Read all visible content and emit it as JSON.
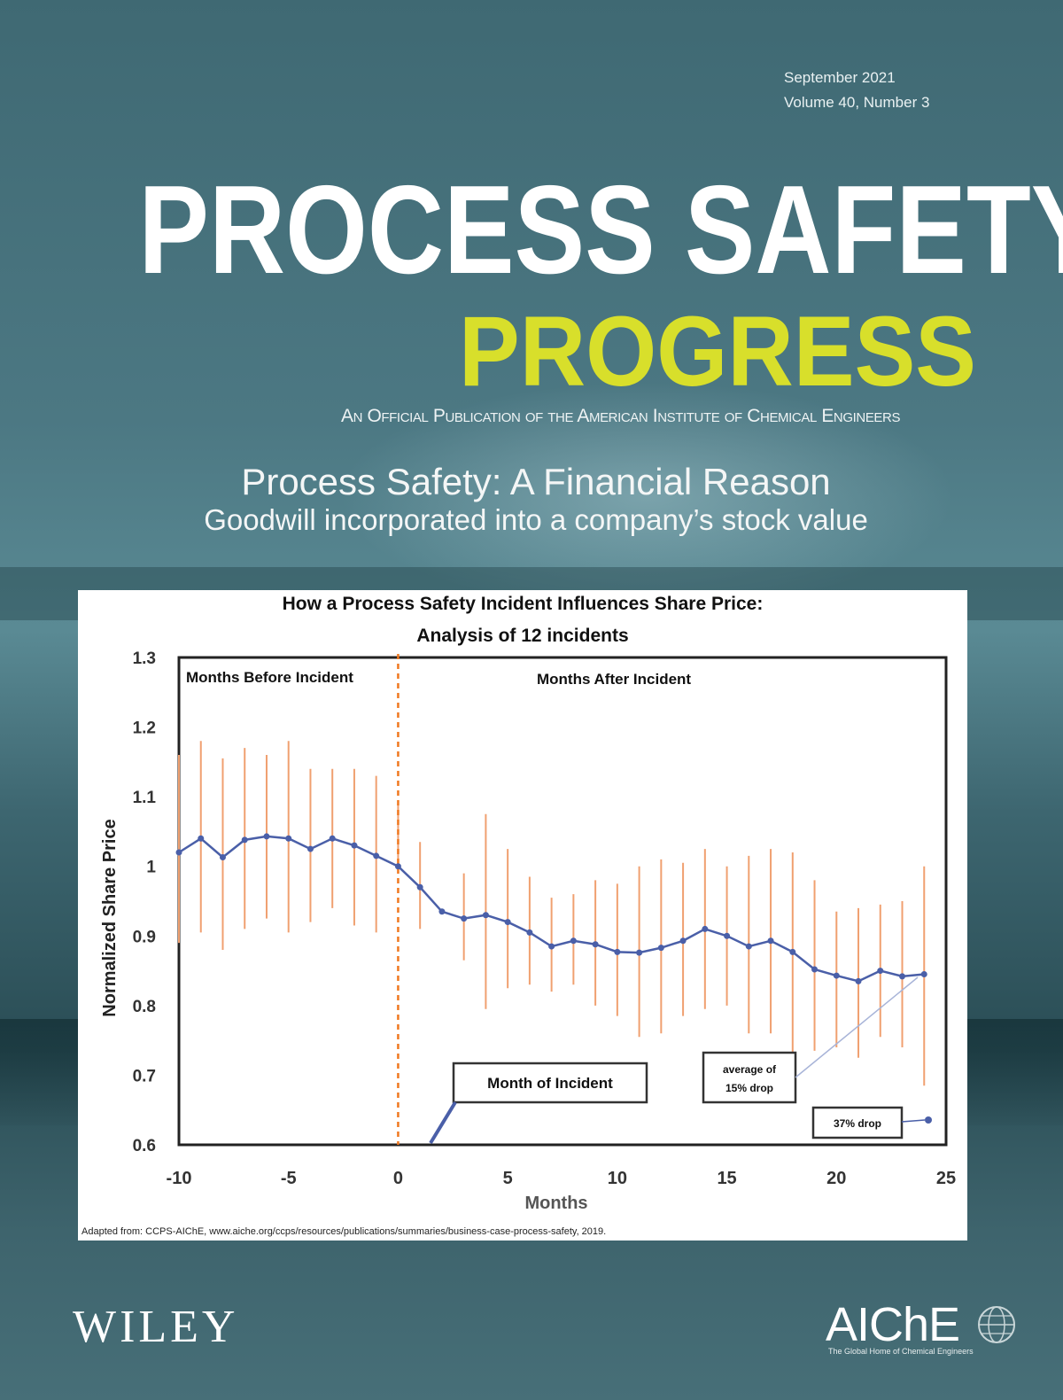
{
  "issue": {
    "date": "September 2021",
    "volume": "Volume 40, Number 3"
  },
  "masthead": {
    "title_line1": "PROCESS SAFETY",
    "title_line2": "PROGRESS",
    "tagline": "An Official Publication of the American Institute of Chemical Engineers"
  },
  "cover_story": {
    "headline": "Process Safety: A Financial Reason",
    "subheadline": "Goodwill incorporated into a company’s stock value"
  },
  "chart_data": {
    "type": "line",
    "title": "How a Process Safety Incident Influences Share  Price:",
    "subtitle": "Analysis of 12 incidents",
    "xlabel": "Months",
    "ylabel": "Normalized Share Price",
    "xlim": [
      -10,
      25
    ],
    "ylim": [
      0.6,
      1.3
    ],
    "x_ticks": [
      "-10",
      "-5",
      "0",
      "5",
      "10",
      "15",
      "20",
      "25"
    ],
    "y_ticks": [
      "0.6",
      "0.7",
      "0.8",
      "0.9",
      "1",
      "1.1",
      "1.2",
      "1.3"
    ],
    "grid": false,
    "annotations": {
      "before": "Months Before Incident",
      "after": "Months After Incident",
      "month_of_incident": "Month of Incident",
      "avg_drop_line1": "average of",
      "avg_drop_line2": "15% drop",
      "extra_drop": "37% drop"
    },
    "incident_line_x": 0,
    "series": [
      {
        "x": [
          -10,
          -9,
          -8,
          -7,
          -6,
          -5,
          -4,
          -3,
          -2,
          -1,
          0,
          1,
          2,
          3,
          4,
          5,
          6,
          7,
          8,
          9,
          10,
          11,
          12,
          13,
          14,
          15,
          16,
          17,
          18,
          19,
          20,
          21,
          22,
          23,
          24
        ],
        "values": [
          1.02,
          1.04,
          1.013,
          1.038,
          1.043,
          1.04,
          1.025,
          1.04,
          1.03,
          1.015,
          1.0,
          0.97,
          0.935,
          0.925,
          0.93,
          0.92,
          0.905,
          0.885,
          0.893,
          0.888,
          0.877,
          0.876,
          0.883,
          0.893,
          0.91,
          0.9,
          0.885,
          0.893,
          0.877,
          0.852,
          0.843,
          0.835,
          0.85,
          0.842,
          0.845
        ],
        "err_high": [
          1.16,
          1.18,
          1.155,
          1.17,
          1.16,
          1.18,
          1.14,
          1.14,
          1.14,
          1.13,
          1.09,
          1.035,
          null,
          0.99,
          1.075,
          1.025,
          0.985,
          0.955,
          0.96,
          0.98,
          0.975,
          1.0,
          1.01,
          1.005,
          1.025,
          1.0,
          1.015,
          1.025,
          1.02,
          0.98,
          0.935,
          0.94,
          0.945,
          0.95,
          1.0
        ],
        "err_low": [
          0.89,
          0.905,
          0.88,
          0.91,
          0.925,
          0.905,
          0.92,
          0.94,
          0.915,
          0.905,
          null,
          0.91,
          null,
          0.865,
          0.795,
          0.825,
          0.83,
          0.82,
          0.83,
          0.8,
          0.785,
          0.755,
          0.76,
          0.785,
          0.795,
          0.8,
          0.76,
          0.76,
          0.73,
          0.735,
          0.74,
          0.725,
          0.755,
          0.74,
          0.685
        ],
        "color": "#4a5fa8"
      }
    ],
    "error_bar_color": "#f0a070",
    "incident_line_color": "#f07820",
    "credit": "Adapted from:  CCPS-AIChE, www.aiche.org/ccps/resources/publications/summaries/business-case-process-safety, 2019."
  },
  "publishers": {
    "wiley": "WILEY",
    "aiche": "AIChE",
    "aiche_tagline": "The Global Home of Chemical Engineers"
  }
}
